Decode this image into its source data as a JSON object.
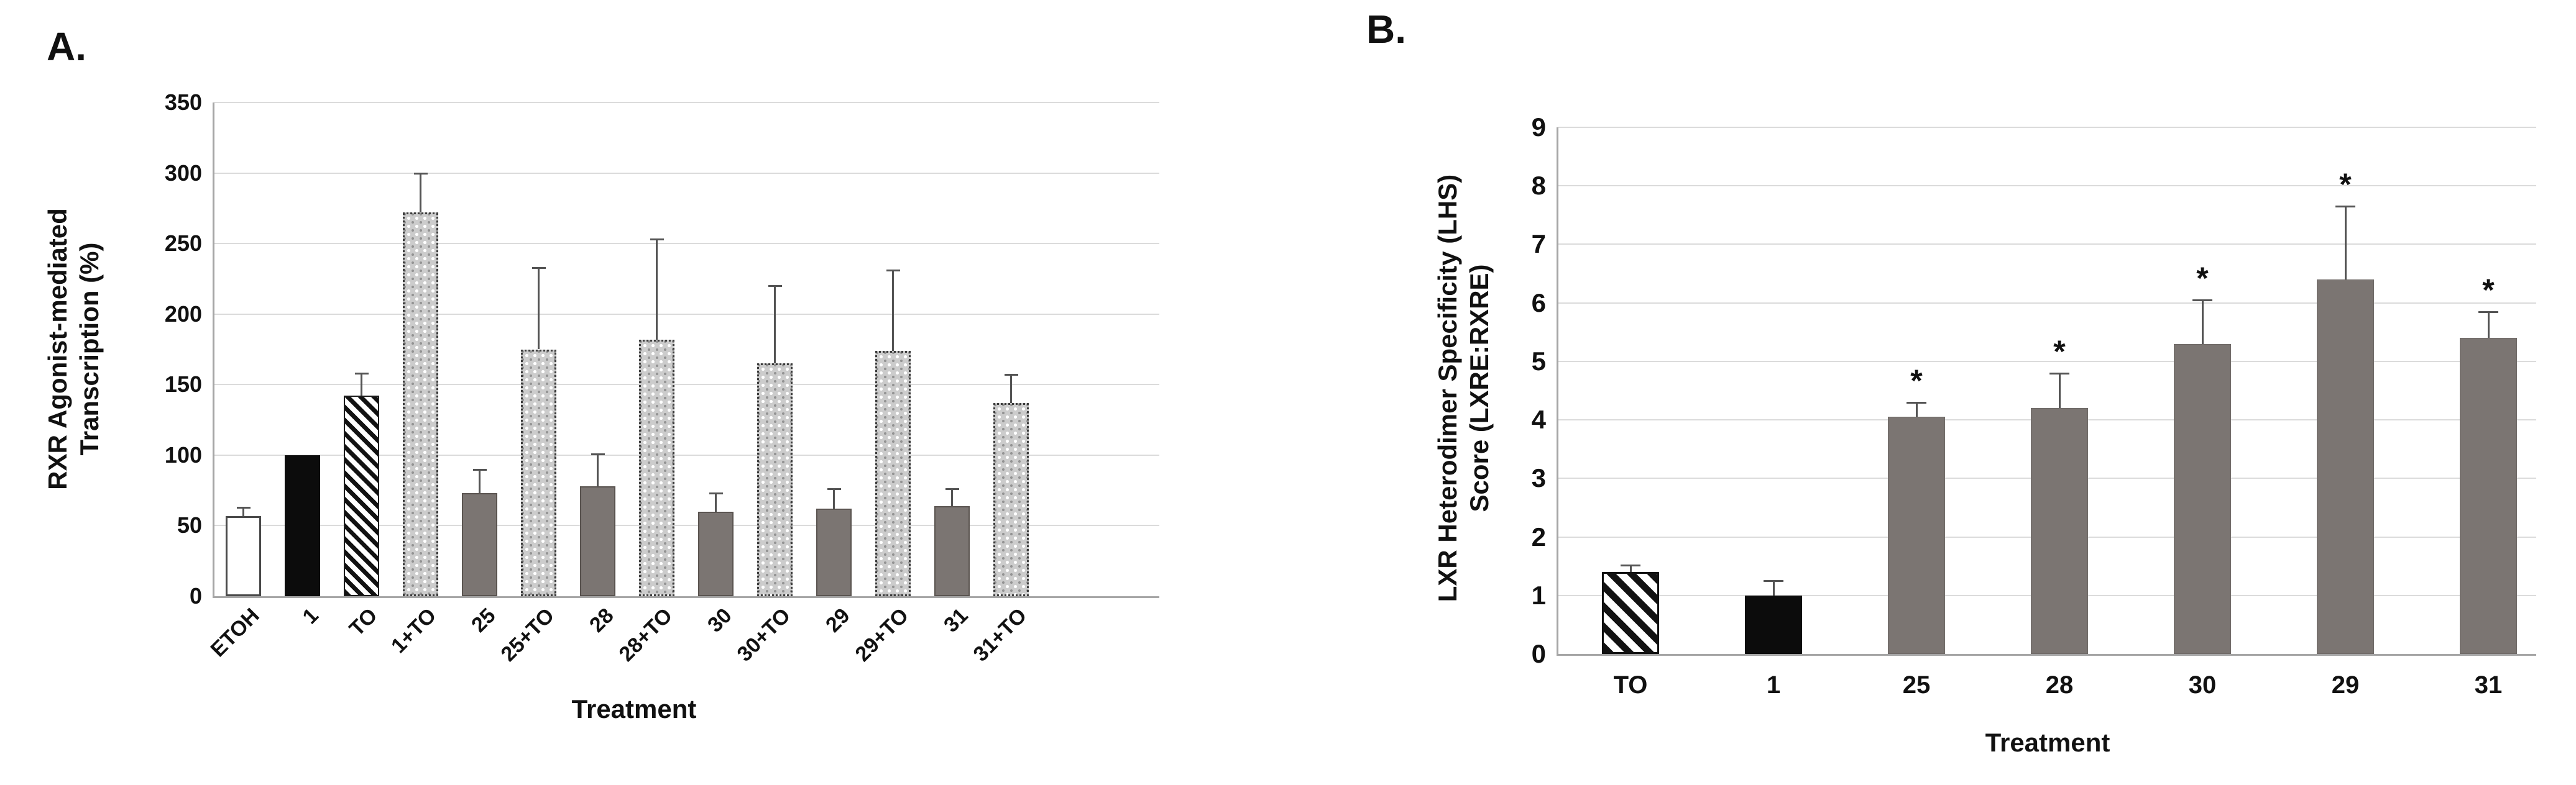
{
  "figure_title": "",
  "colors": {
    "background": "#ffffff",
    "solid_gray_bar": "#7b7572",
    "black_bar": "#0c0c0c",
    "open_bar_border": "#4a4a4a",
    "gridline": "#dbdbdb",
    "axis_line": "#a6a6a6",
    "error_bar": "#545454",
    "text": "#111111"
  },
  "panels": [
    {
      "label": "A.",
      "chart_data": {
        "type": "bar",
        "title": "",
        "xlabel": "Treatment",
        "ylabel_lines": [
          "RXR Agonist-mediated",
          "Transcription (%)"
        ],
        "ylim": [
          0,
          350
        ],
        "yticks": [
          0,
          50,
          100,
          150,
          200,
          250,
          300,
          350
        ],
        "grid": true,
        "legend": "none",
        "categories": [
          "ETOH",
          "1",
          "TO",
          "1+TO",
          "25",
          "25+TO",
          "28",
          "28+TO",
          "30",
          "30+TO",
          "29",
          "29+TO",
          "31",
          "31+TO"
        ],
        "values": [
          57,
          100,
          142,
          272,
          73,
          175,
          78,
          182,
          60,
          165,
          62,
          174,
          64,
          137
        ],
        "error_upper": [
          63,
          null,
          158,
          300,
          90,
          233,
          101,
          253,
          73,
          220,
          76,
          231,
          76,
          157
        ],
        "bar_styles": [
          "open-white",
          "solid-black",
          "diagonal-stripes",
          "dotted-hatch",
          "solid-gray",
          "dotted-hatch",
          "solid-gray",
          "dotted-hatch",
          "solid-gray",
          "dotted-hatch",
          "solid-gray",
          "dotted-hatch",
          "solid-gray",
          "dotted-hatch"
        ],
        "significance": [
          "",
          "",
          "",
          "",
          "",
          "",
          "",
          "",
          "",
          "",
          "",
          "",
          "",
          ""
        ]
      }
    },
    {
      "label": "B.",
      "chart_data": {
        "type": "bar",
        "title": "",
        "xlabel": "Treatment",
        "ylabel_lines": [
          "LXR Heterodimer Specificity (LHS)",
          "Score (LXRE:RXRE)"
        ],
        "ylim": [
          0,
          9
        ],
        "yticks": [
          0,
          1,
          2,
          3,
          4,
          5,
          6,
          7,
          8,
          9
        ],
        "grid": true,
        "legend": "none",
        "categories": [
          "TO",
          "1",
          "25",
          "28",
          "30",
          "29",
          "31"
        ],
        "values": [
          1.4,
          1.0,
          4.05,
          4.2,
          5.3,
          6.4,
          5.4
        ],
        "error_upper": [
          1.52,
          1.25,
          4.3,
          4.8,
          6.05,
          7.65,
          5.85
        ],
        "bar_styles": [
          "diagonal-stripes",
          "solid-black",
          "solid-gray",
          "solid-gray",
          "solid-gray",
          "solid-gray",
          "solid-gray"
        ],
        "significance": [
          "",
          "",
          "*",
          "*",
          "*",
          "*",
          "*"
        ]
      }
    }
  ]
}
